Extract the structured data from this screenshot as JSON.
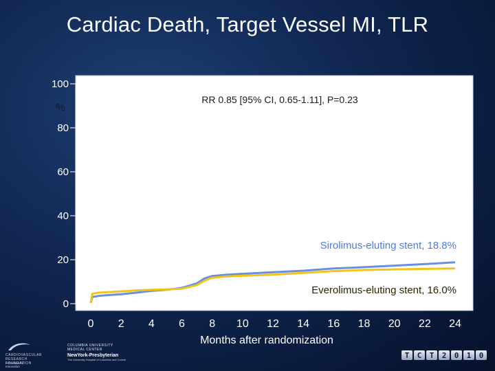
{
  "slide": {
    "title": "Cardiac Death, Target Vessel MI, TLR"
  },
  "chart_data": {
    "type": "line",
    "title": "Cardiac Death, Target Vessel MI, TLR",
    "annotation": "RR 0.85 [95% CI, 0.65-1.11], P=0.23",
    "xlabel": "Months after randomization",
    "ylabel": "%",
    "xlim": [
      0,
      24
    ],
    "ylim": [
      0,
      100
    ],
    "xticks": [
      0,
      2,
      4,
      6,
      8,
      10,
      12,
      14,
      16,
      18,
      20,
      22,
      24
    ],
    "yticks": [
      0,
      20,
      40,
      60,
      80,
      100
    ],
    "series": [
      {
        "name": "Sirolimus-eluting stent, 18.8%",
        "color": "#6b8fe0",
        "points": [
          [
            0,
            0.5
          ],
          [
            0.1,
            3.0
          ],
          [
            0.5,
            3.5
          ],
          [
            1,
            3.8
          ],
          [
            2,
            4.3
          ],
          [
            3,
            5.0
          ],
          [
            4,
            5.8
          ],
          [
            5,
            6.3
          ],
          [
            6,
            7.2
          ],
          [
            6.5,
            8.2
          ],
          [
            7,
            9.3
          ],
          [
            7.5,
            11.5
          ],
          [
            8,
            12.6
          ],
          [
            9,
            13.2
          ],
          [
            10,
            13.6
          ],
          [
            12,
            14.3
          ],
          [
            14,
            15.0
          ],
          [
            16,
            16.0
          ],
          [
            18,
            16.6
          ],
          [
            20,
            17.3
          ],
          [
            22,
            18.0
          ],
          [
            24,
            18.8
          ]
        ]
      },
      {
        "name": "Everolimus-eluting stent, 16.0%",
        "color": "#f0c419",
        "points": [
          [
            0,
            0.3
          ],
          [
            0.1,
            4.5
          ],
          [
            0.5,
            5.0
          ],
          [
            1,
            5.2
          ],
          [
            2,
            5.6
          ],
          [
            3,
            6.0
          ],
          [
            4,
            6.3
          ],
          [
            5,
            6.5
          ],
          [
            6,
            6.8
          ],
          [
            6.5,
            7.6
          ],
          [
            7,
            8.5
          ],
          [
            7.5,
            10.5
          ],
          [
            8,
            11.8
          ],
          [
            9,
            12.4
          ],
          [
            10,
            12.7
          ],
          [
            12,
            13.2
          ],
          [
            14,
            14.0
          ],
          [
            16,
            14.8
          ],
          [
            18,
            15.3
          ],
          [
            20,
            15.6
          ],
          [
            22,
            15.8
          ],
          [
            24,
            16.0
          ]
        ]
      }
    ],
    "labels": {
      "sirolimus": "Sirolimus-eluting stent, 18.8%",
      "everolimus": "Everolimus-eluting stent, 16.0%"
    }
  },
  "footer": {
    "crf_name": "CARDIOVASCULAR RESEARCH FOUNDATION",
    "crf_tagline": "A Passion for Innovation",
    "columbia_line1": "COLUMBIA UNIVERSITY",
    "columbia_line2": "MEDICAL CENTER",
    "nyp_name": "NewYork-Presbyterian",
    "nyp_sub": "The University Hospital of Columbia and Cornell",
    "tct_letters": [
      "T",
      "C",
      "T",
      "2",
      "0",
      "1",
      "0"
    ]
  }
}
